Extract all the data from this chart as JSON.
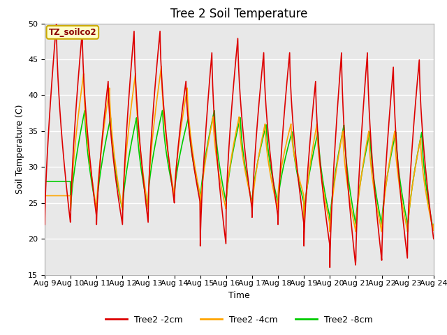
{
  "title": "Tree 2 Soil Temperature",
  "xlabel": "Time",
  "ylabel": "Soil Temperature (C)",
  "ylim": [
    15,
    50
  ],
  "annotation": "TZ_soilco2",
  "legend": [
    "Tree2 -2cm",
    "Tree2 -4cm",
    "Tree2 -8cm"
  ],
  "colors": [
    "#dd0000",
    "#ffa500",
    "#00cc00"
  ],
  "linewidth": 1.2,
  "background_color": "#e8e8e8",
  "fig_background": "#ffffff",
  "xtick_labels": [
    "Aug 9",
    "Aug 10",
    "Aug 11",
    "Aug 12",
    "Aug 13",
    "Aug 14",
    "Aug 15",
    "Aug 16",
    "Aug 17",
    "Aug 18",
    "Aug 19",
    "Aug 20",
    "Aug 21",
    "Aug 22",
    "Aug 23",
    "Aug 24"
  ],
  "title_fontsize": 12,
  "axis_fontsize": 9,
  "tick_fontsize": 8,
  "red_peaks": [
    50,
    49,
    42,
    49,
    49,
    42,
    46,
    48,
    46,
    46,
    42,
    46,
    46,
    44,
    45,
    45
  ],
  "red_troughs": [
    22,
    23,
    22,
    22,
    25,
    25,
    19,
    24,
    23,
    22,
    19,
    16,
    17,
    17,
    20,
    20
  ],
  "orange_peaks": [
    26,
    43,
    41,
    43,
    44,
    41,
    37,
    37,
    36,
    36,
    36,
    35,
    35,
    35,
    34,
    44
  ],
  "orange_troughs": [
    26,
    24,
    24,
    24,
    26,
    26,
    24,
    25,
    24,
    26,
    22,
    21,
    21,
    21,
    21,
    22
  ],
  "green_peaks": [
    28,
    38,
    37,
    37,
    38,
    37,
    38,
    37,
    36,
    35,
    35,
    36,
    35,
    35,
    35,
    45
  ],
  "green_troughs": [
    28,
    24,
    24,
    24,
    26,
    26,
    25,
    25,
    25,
    25,
    23,
    22,
    22,
    22,
    21,
    22
  ],
  "red_peak_phase": 0.45,
  "orange_peak_phase": 0.5,
  "green_peak_phase": 0.55
}
